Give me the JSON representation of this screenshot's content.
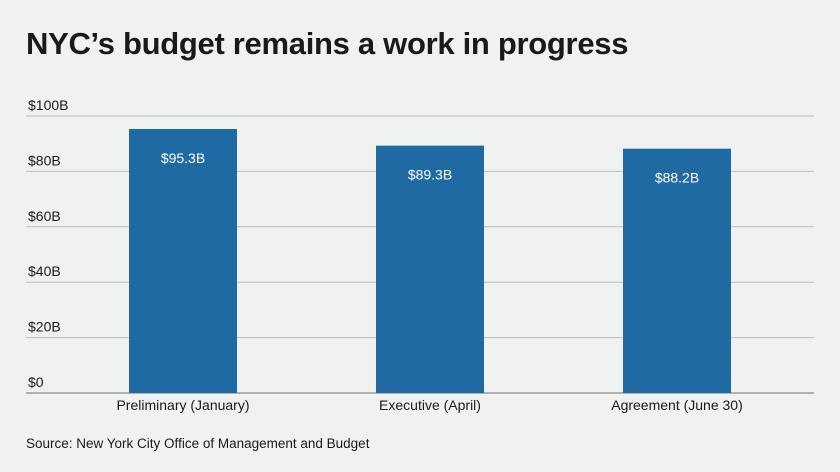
{
  "chart_data": {
    "type": "bar",
    "title": "NYC’s budget remains a work in progress",
    "categories": [
      "Preliminary (January)",
      "Executive (April)",
      "Agreement (June 30)"
    ],
    "values": [
      95.3,
      89.3,
      88.2
    ],
    "data_labels": [
      "$95.3B",
      "$89.3B",
      "$88.2B"
    ],
    "ylim": [
      0,
      100
    ],
    "yticks": [
      0,
      20,
      40,
      60,
      80,
      100
    ],
    "ytick_labels": [
      "$0",
      "$20B",
      "$40B",
      "$60B",
      "$80B",
      "$100B"
    ],
    "xlabel": "",
    "ylabel": "",
    "grid": true,
    "bar_color": "#1f6aa3",
    "grid_color": "#b9bcbe",
    "source": "Source: New York City Office of Management and Budget"
  }
}
